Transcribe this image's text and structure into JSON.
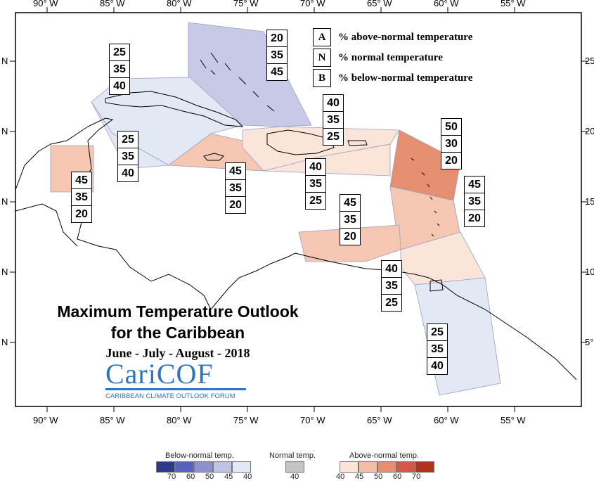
{
  "title_line1": "Maximum Temperature Outlook",
  "title_line2": "for the Caribbean",
  "subtitle": "June - July - August - 2018",
  "logo": {
    "name": "CariCOF",
    "caption": "CARIBBEAN CLIMATE OUTLOOK FORUM"
  },
  "lon_labels": [
    "90° W",
    "85° W",
    "80° W",
    "75° W",
    "70° W",
    "65° W",
    "60° W",
    "55° W"
  ],
  "lat_left_labels": [
    "N",
    "N",
    "N",
    "N",
    "N"
  ],
  "lat_right_labels": [
    "25",
    "20",
    "15",
    "10",
    "5°"
  ],
  "key": [
    {
      "letter": "A",
      "text": "% above-normal temperature"
    },
    {
      "letter": "N",
      "text": "% normal temperature"
    },
    {
      "letter": "B",
      "text": "% below-normal temperature"
    }
  ],
  "regions": [
    {
      "id": "bahamas",
      "A": "20",
      "N": "35",
      "B": "45",
      "color": "#c7c9e6"
    },
    {
      "id": "cuba",
      "A": "25",
      "N": "35",
      "B": "40",
      "color": "#e3e8f5"
    },
    {
      "id": "cayman",
      "A": "25",
      "N": "35",
      "B": "40",
      "color": "#e3e8f5"
    },
    {
      "id": "belize",
      "A": "45",
      "N": "35",
      "B": "20",
      "color": "#f5c7b3"
    },
    {
      "id": "jamaica",
      "A": "45",
      "N": "35",
      "B": "20",
      "color": "#f5c7b3"
    },
    {
      "id": "hispaniola",
      "A": "40",
      "N": "35",
      "B": "25",
      "color": "#fbe4da"
    },
    {
      "id": "hispaniola-south",
      "A": "40",
      "N": "35",
      "B": "25",
      "color": "#fbe4da"
    },
    {
      "id": "leeward",
      "A": "50",
      "N": "30",
      "B": "20",
      "color": "#e58f70"
    },
    {
      "id": "windward",
      "A": "45",
      "N": "35",
      "B": "20",
      "color": "#f5c7b3"
    },
    {
      "id": "abc",
      "A": "45",
      "N": "35",
      "B": "20",
      "color": "#f5c7b3"
    },
    {
      "id": "trinidad",
      "A": "40",
      "N": "35",
      "B": "25",
      "color": "#fbe4da"
    },
    {
      "id": "guianas",
      "A": "25",
      "N": "35",
      "B": "40",
      "color": "#e3e8f5"
    }
  ],
  "colorbar": {
    "below_label": "Below-normal temp.",
    "normal_label": "Normal temp.",
    "above_label": "Above-normal temp.",
    "below_colors": [
      "#2e3a87",
      "#5563b8",
      "#8d92cf",
      "#bfc3e6",
      "#e4e8f6"
    ],
    "below_ticks": [
      "70",
      "60",
      "50",
      "45",
      "40"
    ],
    "normal_color": "#c4c4c4",
    "normal_tick": "40",
    "above_colors": [
      "#fde3d8",
      "#f6bca6",
      "#e58f70",
      "#d05a44",
      "#b2341f"
    ],
    "above_ticks": [
      "40",
      "45",
      "50",
      "60",
      "70"
    ]
  }
}
